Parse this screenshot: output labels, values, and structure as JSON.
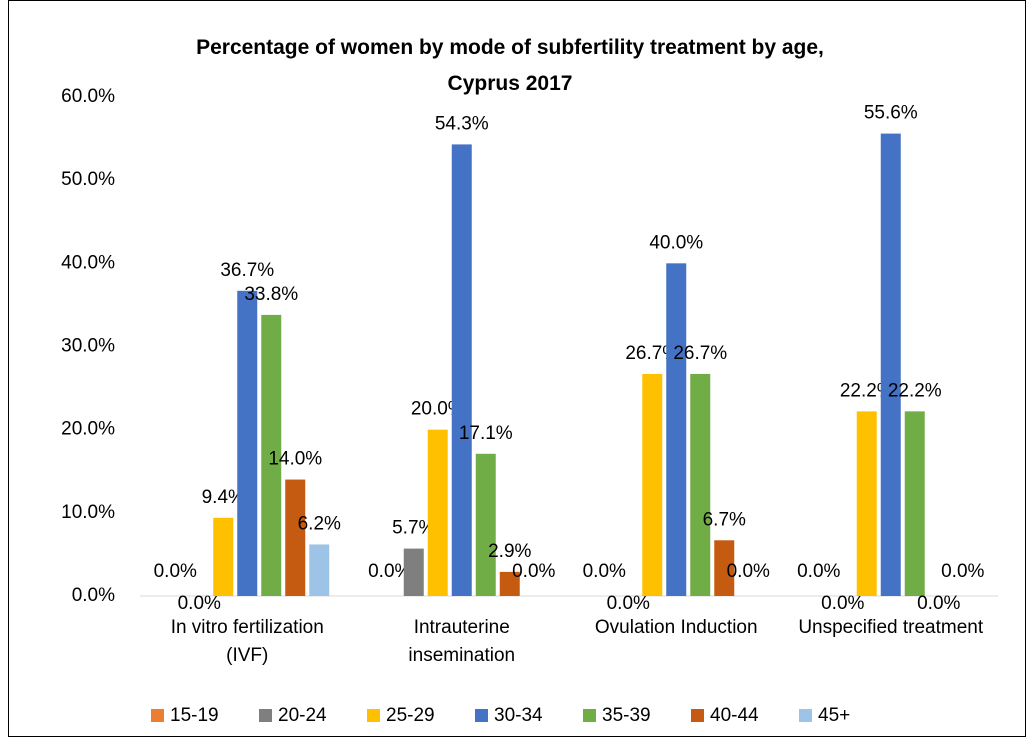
{
  "chart_data": {
    "type": "bar",
    "title": "Percentage of women by mode of subfertility treatment by age, Cyprus 2017",
    "categories": [
      "In vitro fertilization (IVF)",
      "Intrauterine insemination",
      "Ovulation Induction",
      "Unspecified treatment"
    ],
    "series": [
      {
        "name": "15-19",
        "color": "#ed7d31",
        "values": [
          0,
          0,
          0,
          0
        ],
        "value_labels": [
          "0.0%",
          "0.0%",
          "0.0%",
          "0.0%"
        ]
      },
      {
        "name": "20-24",
        "color": "#7f7f7f",
        "values": [
          0,
          5.7,
          0,
          0
        ],
        "value_labels": [
          "0.0%",
          "5.7%",
          "0.0%",
          "0.0%"
        ]
      },
      {
        "name": "25-29",
        "color": "#ffc000",
        "values": [
          9.4,
          20.0,
          26.7,
          22.2
        ],
        "value_labels": [
          "9.4%",
          "20.0%",
          "26.7%",
          "22.2%"
        ]
      },
      {
        "name": "30-34",
        "color": "#4472c4",
        "values": [
          36.7,
          54.3,
          40.0,
          55.6
        ],
        "value_labels": [
          "36.7%",
          "54.3%",
          "40.0%",
          "55.6%"
        ]
      },
      {
        "name": "35-39",
        "color": "#70ad47",
        "values": [
          33.8,
          17.1,
          26.7,
          22.2
        ],
        "value_labels": [
          "33.8%",
          "17.1%",
          "26.7%",
          "22.2%"
        ]
      },
      {
        "name": "40-44",
        "color": "#c55a11",
        "values": [
          14.0,
          2.9,
          6.7,
          0
        ],
        "value_labels": [
          "14.0%",
          "2.9%",
          "6.7%",
          "0.0%"
        ]
      },
      {
        "name": "45+",
        "color": "#9dc3e6",
        "values": [
          6.2,
          0,
          0,
          0
        ],
        "value_labels": [
          "6.2%",
          "0.0%",
          "0.0%",
          "0.0%"
        ]
      }
    ],
    "ylim": [
      0,
      60
    ],
    "yticks": [
      {
        "value": 0,
        "label": "0.0%"
      },
      {
        "value": 10,
        "label": "10.0%"
      },
      {
        "value": 20,
        "label": "20.0%"
      },
      {
        "value": 30,
        "label": "30.0%"
      },
      {
        "value": 40,
        "label": "40.0%"
      },
      {
        "value": 50,
        "label": "50.0%"
      },
      {
        "value": 60,
        "label": "60.0%"
      }
    ],
    "grid": false,
    "legend": "bottom"
  }
}
